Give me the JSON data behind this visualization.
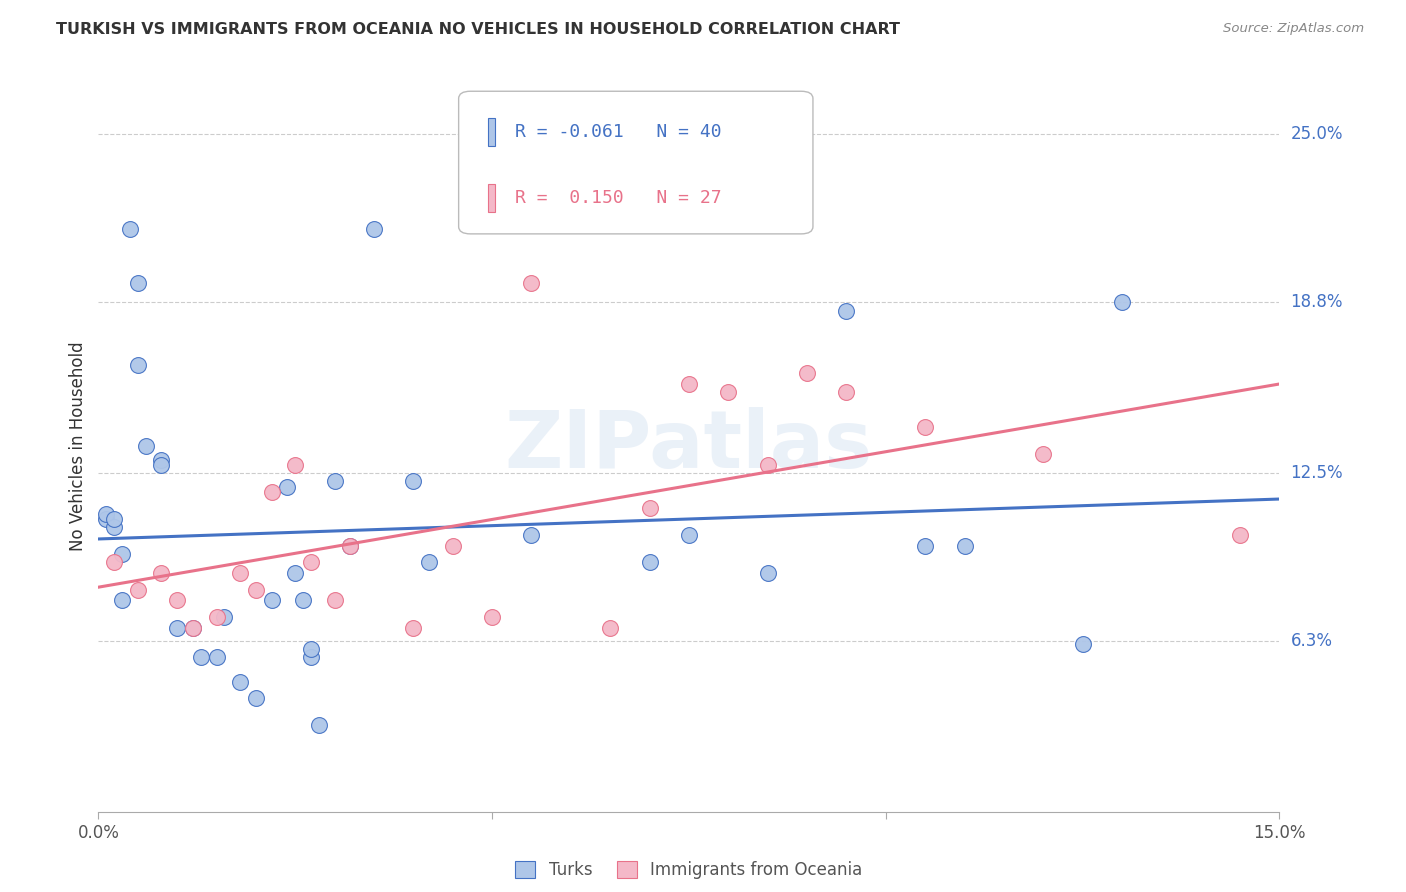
{
  "title": "TURKISH VS IMMIGRANTS FROM OCEANIA NO VEHICLES IN HOUSEHOLD CORRELATION CHART",
  "source": "Source: ZipAtlas.com",
  "ylabel": "No Vehicles in Household",
  "ytick_labels": [
    "25.0%",
    "18.8%",
    "12.5%",
    "6.3%"
  ],
  "ytick_values": [
    0.25,
    0.188,
    0.125,
    0.063
  ],
  "xmin": 0.0,
  "xmax": 0.15,
  "ymin": 0.0,
  "ymax": 0.27,
  "watermark": "ZIPatlas",
  "turks_color": "#aec6e8",
  "turks_line_color": "#4472c4",
  "oceania_color": "#f4b8c8",
  "oceania_line_color": "#e8728a",
  "turks_x": [
    0.001,
    0.001,
    0.002,
    0.002,
    0.003,
    0.003,
    0.004,
    0.005,
    0.008,
    0.01,
    0.012,
    0.013,
    0.015,
    0.016,
    0.018,
    0.02,
    0.022,
    0.024,
    0.025,
    0.026,
    0.027,
    0.027,
    0.028,
    0.03,
    0.032,
    0.035,
    0.04,
    0.042,
    0.055,
    0.07,
    0.075,
    0.085,
    0.095,
    0.105,
    0.11,
    0.125,
    0.13,
    0.005,
    0.006,
    0.008
  ],
  "turks_y": [
    0.108,
    0.11,
    0.105,
    0.108,
    0.095,
    0.078,
    0.215,
    0.165,
    0.13,
    0.068,
    0.068,
    0.057,
    0.057,
    0.072,
    0.048,
    0.042,
    0.078,
    0.12,
    0.088,
    0.078,
    0.057,
    0.06,
    0.032,
    0.122,
    0.098,
    0.215,
    0.122,
    0.092,
    0.102,
    0.092,
    0.102,
    0.088,
    0.185,
    0.098,
    0.098,
    0.062,
    0.188,
    0.195,
    0.135,
    0.128
  ],
  "oceania_x": [
    0.002,
    0.005,
    0.008,
    0.01,
    0.012,
    0.015,
    0.018,
    0.02,
    0.022,
    0.025,
    0.027,
    0.03,
    0.032,
    0.04,
    0.045,
    0.05,
    0.055,
    0.065,
    0.07,
    0.075,
    0.08,
    0.085,
    0.09,
    0.095,
    0.105,
    0.12,
    0.145
  ],
  "oceania_y": [
    0.092,
    0.082,
    0.088,
    0.078,
    0.068,
    0.072,
    0.088,
    0.082,
    0.118,
    0.128,
    0.092,
    0.078,
    0.098,
    0.068,
    0.098,
    0.072,
    0.195,
    0.068,
    0.112,
    0.158,
    0.155,
    0.128,
    0.162,
    0.155,
    0.142,
    0.132,
    0.102
  ],
  "turks_R": -0.061,
  "turks_N": 40,
  "oceania_R": 0.15,
  "oceania_N": 27,
  "bg_color": "#ffffff",
  "grid_color": "#cccccc",
  "title_color": "#333333",
  "axis_label_color": "#555555",
  "right_tick_color": "#4472c4"
}
